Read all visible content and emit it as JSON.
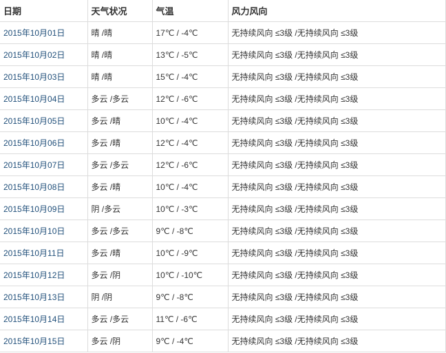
{
  "headers": [
    "日期",
    "天气状况",
    "气温",
    "风力风向"
  ],
  "colors": {
    "date_link": "#1f4e79",
    "border": "#dcdcdc",
    "text": "#333333"
  },
  "rows": [
    {
      "date": "2015年10月01日",
      "weather": "晴 /晴",
      "temp": "17℃ / -4℃",
      "wind": "无持续风向 ≤3级 /无持续风向 ≤3级"
    },
    {
      "date": "2015年10月02日",
      "weather": "晴 /晴",
      "temp": "13℃ / -5℃",
      "wind": "无持续风向 ≤3级 /无持续风向 ≤3级"
    },
    {
      "date": "2015年10月03日",
      "weather": "晴 /晴",
      "temp": "15℃ / -4℃",
      "wind": "无持续风向 ≤3级 /无持续风向 ≤3级"
    },
    {
      "date": "2015年10月04日",
      "weather": "多云 /多云",
      "temp": "12℃ / -6℃",
      "wind": "无持续风向 ≤3级 /无持续风向 ≤3级"
    },
    {
      "date": "2015年10月05日",
      "weather": "多云 /晴",
      "temp": "10℃ / -4℃",
      "wind": "无持续风向 ≤3级 /无持续风向 ≤3级"
    },
    {
      "date": "2015年10月06日",
      "weather": "多云 /晴",
      "temp": "12℃ / -4℃",
      "wind": "无持续风向 ≤3级 /无持续风向 ≤3级"
    },
    {
      "date": "2015年10月07日",
      "weather": "多云 /多云",
      "temp": "12℃ / -6℃",
      "wind": "无持续风向 ≤3级 /无持续风向 ≤3级"
    },
    {
      "date": "2015年10月08日",
      "weather": "多云 /晴",
      "temp": "10℃ / -4℃",
      "wind": "无持续风向 ≤3级 /无持续风向 ≤3级"
    },
    {
      "date": "2015年10月09日",
      "weather": "阴 /多云",
      "temp": "10℃ / -3℃",
      "wind": "无持续风向 ≤3级 /无持续风向 ≤3级"
    },
    {
      "date": "2015年10月10日",
      "weather": "多云 /多云",
      "temp": "9℃ / -8℃",
      "wind": "无持续风向 ≤3级 /无持续风向 ≤3级"
    },
    {
      "date": "2015年10月11日",
      "weather": "多云 /晴",
      "temp": "10℃ / -9℃",
      "wind": "无持续风向 ≤3级 /无持续风向 ≤3级"
    },
    {
      "date": "2015年10月12日",
      "weather": "多云 /阴",
      "temp": "10℃ / -10℃",
      "wind": "无持续风向 ≤3级 /无持续风向 ≤3级"
    },
    {
      "date": "2015年10月13日",
      "weather": "阴 /阴",
      "temp": "9℃ / -8℃",
      "wind": "无持续风向 ≤3级 /无持续风向 ≤3级"
    },
    {
      "date": "2015年10月14日",
      "weather": "多云 /多云",
      "temp": "11℃ / -6℃",
      "wind": "无持续风向 ≤3级 /无持续风向 ≤3级"
    },
    {
      "date": "2015年10月15日",
      "weather": "多云 /阴",
      "temp": "9℃ / -4℃",
      "wind": "无持续风向 ≤3级 /无持续风向 ≤3级"
    }
  ]
}
